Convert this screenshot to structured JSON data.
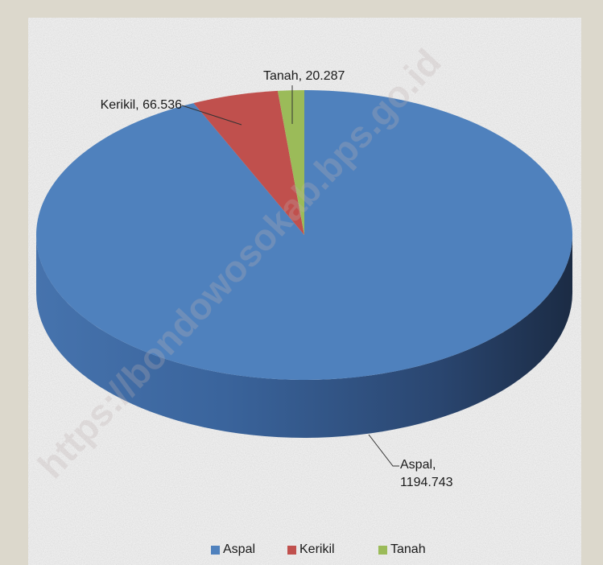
{
  "chart_data": {
    "type": "pie",
    "categories": [
      "Aspal",
      "Kerikil",
      "Tanah"
    ],
    "values": [
      1194.743,
      66.536,
      20.287
    ],
    "value_labels": [
      "Aspal, 1194.743",
      "Kerikil, 66.536",
      "Tanah, 20.287"
    ],
    "colors": [
      "#4f81bd",
      "#c0504d",
      "#9bbb59"
    ],
    "legend": "bottom",
    "watermark": "https://bondowosokab.bps.go.id"
  }
}
